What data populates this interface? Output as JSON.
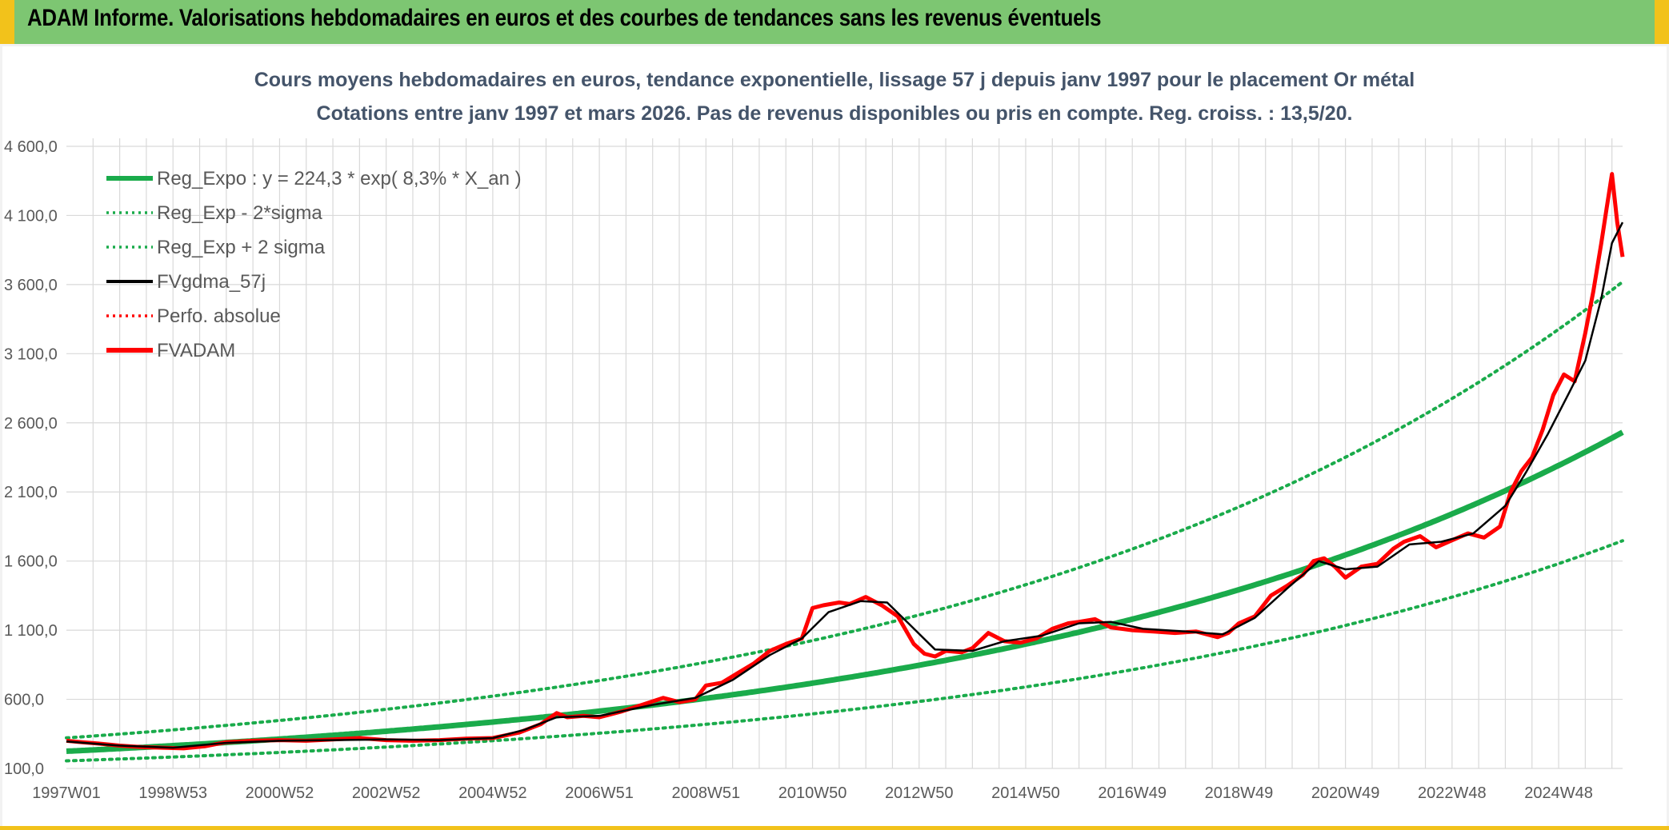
{
  "header": {
    "title": "ADAM Informe. Valorisations hebdomadaires en euros et des courbes de tendances sans les revenus éventuels"
  },
  "colors": {
    "header_bg": "#7dc672",
    "accent_yellow": "#f2c21b",
    "trend_green": "#1aab4b",
    "series_red": "#ff0000",
    "series_black": "#000000"
  },
  "chart_data": {
    "type": "line",
    "title": "Cours moyens hebdomadaires en euros, tendance exponentielle, lissage 57 j depuis janv 1997 pour le placement Or métal",
    "subtitle": "Cotations entre janv 1997 et mars 2026. Pas de revenus disponibles ou pris en compte. Reg. croiss. : 13,5/20.",
    "xlabel": "",
    "ylabel": "",
    "ylim": [
      100,
      4600
    ],
    "yticks": [
      "100,0",
      "600,0",
      "1 100,0",
      "1 600,0",
      "2 100,0",
      "2 600,0",
      "3 100,0",
      "3 600,0",
      "4 100,0",
      "4 600,0"
    ],
    "ytick_values": [
      100,
      600,
      1100,
      1600,
      2100,
      2600,
      3100,
      3600,
      4100,
      4600
    ],
    "xlim": [
      1997.0,
      2026.2
    ],
    "xticks": [
      "1997W01",
      "1998W53",
      "2000W52",
      "2002W52",
      "2004W52",
      "2006W51",
      "2008W51",
      "2010W50",
      "2012W50",
      "2014W50",
      "2016W49",
      "2018W49",
      "2020W49",
      "2022W48",
      "2024W48"
    ],
    "xtick_values": [
      1997.0,
      1999.0,
      2001.0,
      2003.0,
      2005.0,
      2007.0,
      2009.0,
      2011.0,
      2013.0,
      2015.0,
      2017.0,
      2019.0,
      2021.0,
      2023.0,
      2025.0
    ],
    "grid": true,
    "legend_position": "top-left",
    "regression": {
      "a": 224.3,
      "rate": 0.083,
      "sigma_factor_up": 1.43,
      "sigma_factor_down": 0.69
    },
    "series": [
      {
        "name": "Reg_Expo : y = 224,3 * exp( 8,3% *  X_an )",
        "style": "thick-solid",
        "color": "#1aab4b"
      },
      {
        "name": "Reg_Exp - 2*sigma",
        "style": "dotted",
        "color": "#1aab4b"
      },
      {
        "name": "Reg_Exp + 2 sigma",
        "style": "dotted",
        "color": "#1aab4b"
      },
      {
        "name": "FVgdma_57j",
        "style": "solid",
        "color": "#000000"
      },
      {
        "name": "Perfo. absolue",
        "style": "dotted",
        "color": "#ff0000"
      },
      {
        "name": "FVADAM",
        "style": "thick-solid",
        "color": "#ff0000"
      }
    ],
    "fvadam": {
      "x": [
        1997.0,
        1997.3,
        1997.6,
        1998.0,
        1998.4,
        1998.8,
        1999.2,
        1999.6,
        1999.8,
        2000.0,
        2000.5,
        2001.0,
        2001.5,
        2002.0,
        2002.5,
        2003.0,
        2003.5,
        2004.0,
        2004.5,
        2005.0,
        2005.5,
        2005.9,
        2006.2,
        2006.4,
        2006.7,
        2007.0,
        2007.4,
        2007.8,
        2008.2,
        2008.5,
        2008.8,
        2009.0,
        2009.3,
        2009.6,
        2009.9,
        2010.2,
        2010.5,
        2010.8,
        2011.0,
        2011.2,
        2011.5,
        2011.7,
        2012.0,
        2012.3,
        2012.6,
        2012.9,
        2013.1,
        2013.3,
        2013.5,
        2013.8,
        2014.0,
        2014.3,
        2014.6,
        2014.9,
        2015.2,
        2015.5,
        2015.8,
        2016.0,
        2016.3,
        2016.6,
        2017.0,
        2017.4,
        2017.8,
        2018.2,
        2018.6,
        2018.8,
        2019.0,
        2019.3,
        2019.6,
        2019.9,
        2020.2,
        2020.4,
        2020.6,
        2020.8,
        2021.0,
        2021.3,
        2021.6,
        2021.9,
        2022.1,
        2022.4,
        2022.7,
        2023.0,
        2023.3,
        2023.6,
        2023.9,
        2024.1,
        2024.3,
        2024.5,
        2024.7,
        2024.9,
        2025.1,
        2025.3,
        2025.5,
        2025.65,
        2025.8,
        2025.9,
        2026.0,
        2026.1,
        2026.2
      ],
      "y": [
        300,
        290,
        280,
        265,
        255,
        250,
        245,
        260,
        275,
        290,
        300,
        305,
        300,
        310,
        320,
        305,
        300,
        305,
        315,
        320,
        360,
        420,
        500,
        470,
        480,
        470,
        510,
        560,
        610,
        580,
        600,
        700,
        720,
        790,
        860,
        950,
        1000,
        1040,
        1260,
        1280,
        1300,
        1290,
        1340,
        1280,
        1200,
        1000,
        930,
        910,
        950,
        940,
        970,
        1080,
        1020,
        1010,
        1040,
        1110,
        1150,
        1160,
        1180,
        1120,
        1100,
        1090,
        1080,
        1090,
        1050,
        1080,
        1150,
        1200,
        1350,
        1420,
        1500,
        1600,
        1620,
        1560,
        1480,
        1560,
        1580,
        1690,
        1740,
        1780,
        1700,
        1750,
        1800,
        1770,
        1850,
        2100,
        2250,
        2350,
        2550,
        2800,
        2950,
        2900,
        3250,
        3550,
        3900,
        4150,
        4400,
        4050,
        3800
      ]
    },
    "fvgdma_57j": {
      "x": [
        1997.0,
        1998.0,
        1999.0,
        2000.0,
        2001.0,
        2002.0,
        2003.0,
        2004.0,
        2005.0,
        2005.6,
        2006.2,
        2007.0,
        2008.0,
        2008.8,
        2009.5,
        2010.2,
        2010.8,
        2011.3,
        2011.9,
        2012.4,
        2012.8,
        2013.3,
        2014.0,
        2014.6,
        2015.3,
        2016.0,
        2016.6,
        2017.2,
        2018.0,
        2018.7,
        2019.3,
        2019.9,
        2020.5,
        2021.0,
        2021.6,
        2022.2,
        2022.8,
        2023.4,
        2024.0,
        2024.4,
        2024.8,
        2025.2,
        2025.5,
        2025.8,
        2026.0,
        2026.2
      ],
      "y": [
        295,
        265,
        250,
        285,
        300,
        305,
        310,
        305,
        320,
        380,
        470,
        480,
        560,
        610,
        740,
        920,
        1040,
        1230,
        1310,
        1300,
        1150,
        960,
        950,
        1020,
        1060,
        1150,
        1160,
        1110,
        1090,
        1070,
        1190,
        1400,
        1600,
        1540,
        1560,
        1720,
        1740,
        1800,
        2000,
        2250,
        2520,
        2820,
        3050,
        3500,
        3900,
        4050
      ]
    }
  }
}
